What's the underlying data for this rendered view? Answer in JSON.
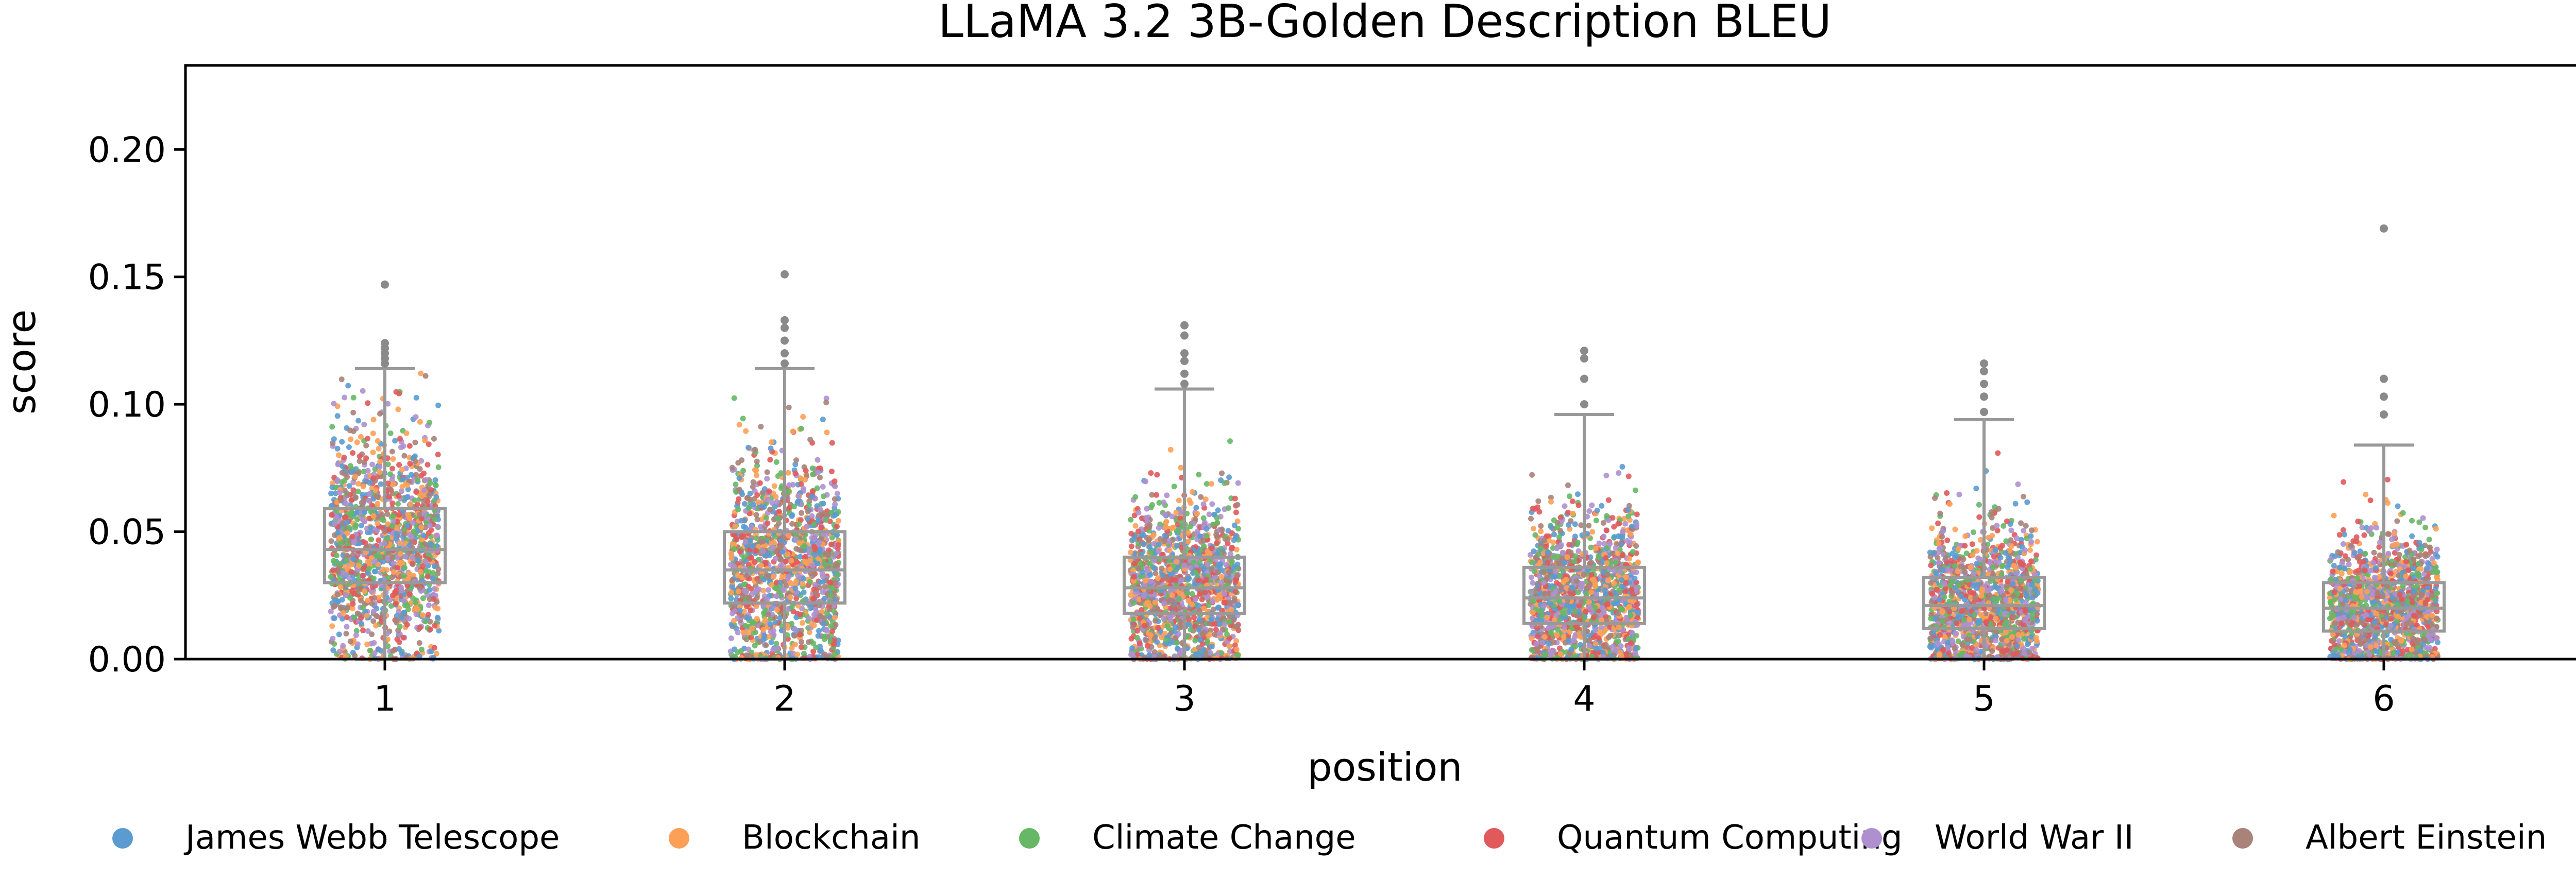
{
  "chart_data": {
    "type": "box+strip",
    "title": "LLaMA 3.2 3B-Golden Description BLEU",
    "xlabel": "position",
    "ylabel": "score",
    "ylim": [
      0,
      0.233
    ],
    "categories": [
      "1",
      "2",
      "3",
      "4",
      "5",
      "6"
    ],
    "yticks": [
      {
        "value": 0.0,
        "label": "0.00"
      },
      {
        "value": 0.05,
        "label": "0.05"
      },
      {
        "value": 0.1,
        "label": "0.10"
      },
      {
        "value": 0.15,
        "label": "0.15"
      },
      {
        "value": 0.2,
        "label": "0.20"
      }
    ],
    "grid": false,
    "legend_position": "bottom",
    "box_color": "#999999",
    "boxes": [
      {
        "position": "1",
        "whislo": 0.0,
        "q1": 0.03,
        "median": 0.043,
        "q3": 0.059,
        "whishi": 0.114,
        "outliers": [
          0.116,
          0.118,
          0.12,
          0.122,
          0.124,
          0.147
        ]
      },
      {
        "position": "2",
        "whislo": 0.0,
        "q1": 0.022,
        "median": 0.035,
        "q3": 0.05,
        "whishi": 0.114,
        "outliers": [
          0.116,
          0.12,
          0.125,
          0.13,
          0.133,
          0.151
        ]
      },
      {
        "position": "3",
        "whislo": 0.0,
        "q1": 0.018,
        "median": 0.028,
        "q3": 0.04,
        "whishi": 0.106,
        "outliers": [
          0.108,
          0.112,
          0.117,
          0.12,
          0.127,
          0.131
        ]
      },
      {
        "position": "4",
        "whislo": 0.0,
        "q1": 0.014,
        "median": 0.024,
        "q3": 0.036,
        "whishi": 0.096,
        "outliers": [
          0.1,
          0.11,
          0.118,
          0.121
        ]
      },
      {
        "position": "5",
        "whislo": 0.0,
        "q1": 0.012,
        "median": 0.021,
        "q3": 0.032,
        "whishi": 0.094,
        "outliers": [
          0.097,
          0.103,
          0.108,
          0.113,
          0.116
        ]
      },
      {
        "position": "6",
        "whislo": 0.0,
        "q1": 0.011,
        "median": 0.02,
        "q3": 0.03,
        "whishi": 0.084,
        "outliers": [
          0.096,
          0.103,
          0.11,
          0.169
        ]
      }
    ],
    "series": [
      {
        "name": "James Webb Telescope",
        "color": "#5b9bd0"
      },
      {
        "name": "Blockchain",
        "color": "#fda057"
      },
      {
        "name": "Climate Change",
        "color": "#66b766"
      },
      {
        "name": "Quantum Computing",
        "color": "#e05a5c"
      },
      {
        "name": "World War II",
        "color": "#ae90cf"
      },
      {
        "name": "Albert Einstein",
        "color": "#a98279"
      }
    ]
  }
}
